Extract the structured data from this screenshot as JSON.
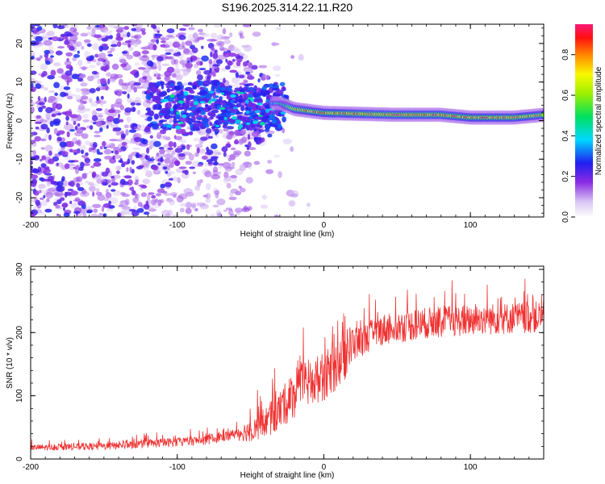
{
  "title": "S196.2025.314.22.11.R20",
  "chart_data": [
    {
      "type": "heatmap",
      "name": "spectrogram",
      "xlabel": "Height of straight line (km)",
      "ylabel": "Frequency (Hz)",
      "xlim": [
        -200,
        150
      ],
      "ylim": [
        -25,
        25
      ],
      "xticks": [
        -200,
        -100,
        0,
        100
      ],
      "yticks": [
        -20,
        -10,
        0,
        10,
        20
      ],
      "colorbar": {
        "label": "Normalized spectral amplitude",
        "range": [
          0,
          0.95
        ],
        "ticks": [
          0.0,
          0.2,
          0.4,
          0.6,
          0.8
        ],
        "tick_labels": [
          "0.0",
          "0.2",
          "0.4",
          "0.6",
          "0.8"
        ]
      },
      "ridge": [
        {
          "x": -30,
          "f": 4.5,
          "amp": 0.45
        },
        {
          "x": -20,
          "f": 3.0,
          "amp": 0.8
        },
        {
          "x": -10,
          "f": 2.5,
          "amp": 0.85
        },
        {
          "x": 0,
          "f": 2.0,
          "amp": 0.88
        },
        {
          "x": 20,
          "f": 1.8,
          "amp": 0.92
        },
        {
          "x": 50,
          "f": 1.5,
          "amp": 0.95
        },
        {
          "x": 80,
          "f": 1.5,
          "amp": 0.93
        },
        {
          "x": 100,
          "f": 0.8,
          "amp": 0.9
        },
        {
          "x": 130,
          "f": 0.8,
          "amp": 0.92
        },
        {
          "x": 150,
          "f": 1.5,
          "amp": 0.8
        }
      ]
    },
    {
      "type": "line",
      "name": "snr",
      "xlabel": "Height of straight line (km)",
      "ylabel": "SNR (10 * v/v)",
      "xlim": [
        -200,
        150
      ],
      "ylim": [
        0,
        305
      ],
      "xticks": [
        -200,
        -100,
        0,
        100
      ],
      "yticks": [
        0,
        100,
        200,
        300
      ],
      "color": "#f03232",
      "trend": [
        {
          "x": -200,
          "y": 18
        },
        {
          "x": -150,
          "y": 20
        },
        {
          "x": -120,
          "y": 24
        },
        {
          "x": -80,
          "y": 30
        },
        {
          "x": -50,
          "y": 45
        },
        {
          "x": -35,
          "y": 65
        },
        {
          "x": -25,
          "y": 90
        },
        {
          "x": -15,
          "y": 115
        },
        {
          "x": 0,
          "y": 130
        },
        {
          "x": 10,
          "y": 150
        },
        {
          "x": 20,
          "y": 180
        },
        {
          "x": 40,
          "y": 205
        },
        {
          "x": 70,
          "y": 215
        },
        {
          "x": 100,
          "y": 220
        },
        {
          "x": 150,
          "y": 225
        }
      ]
    }
  ]
}
